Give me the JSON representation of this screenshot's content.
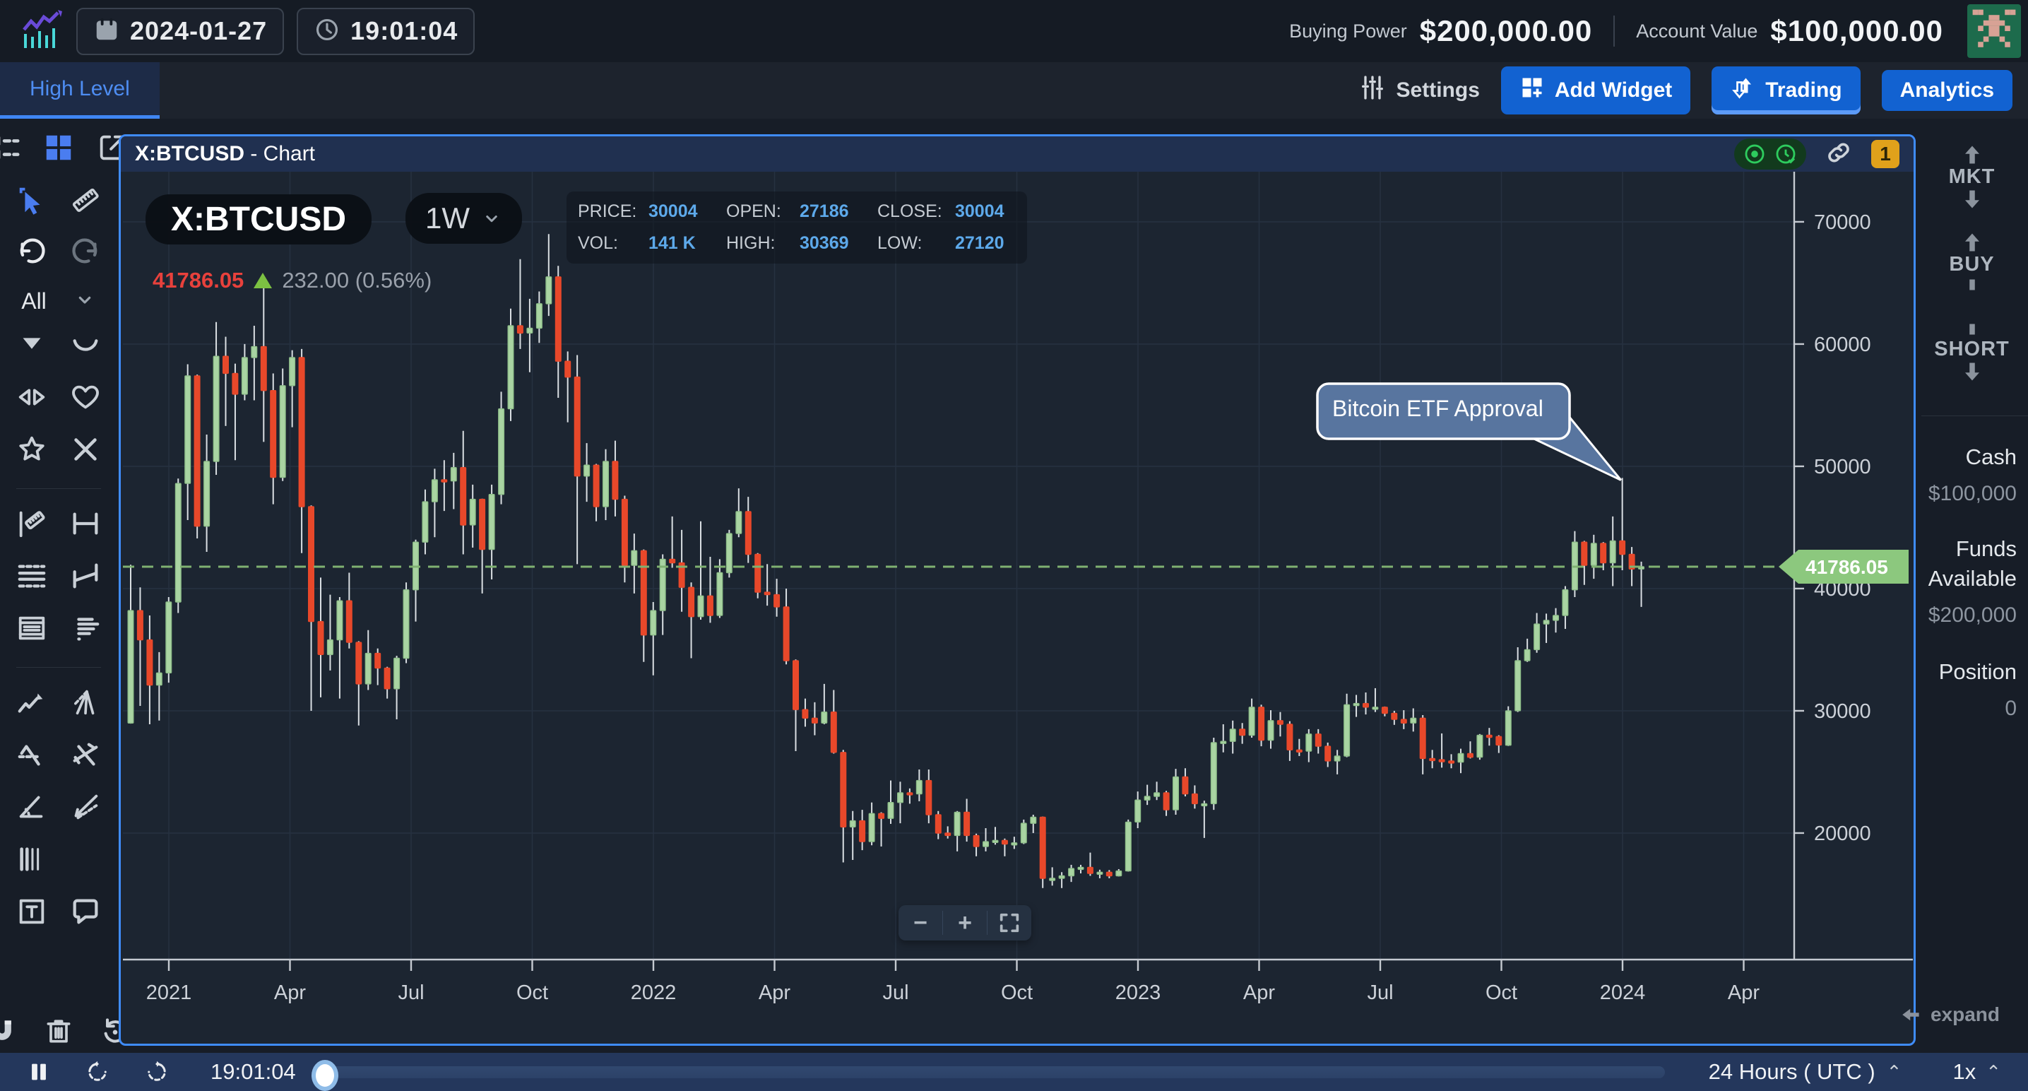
{
  "top_bar": {
    "date": "2024-01-27",
    "time": "19:01:04",
    "buying_power_label": "Buying Power",
    "buying_power_value": "$200,000.00",
    "account_value_label": "Account Value",
    "account_value_value": "$100,000.00"
  },
  "nav": {
    "tab": "High Level",
    "settings_label": "Settings",
    "add_widget_label": "Add Widget",
    "trading_label": "Trading",
    "analytics_label": "Analytics"
  },
  "chart_panel": {
    "title_symbol": "X:BTCUSD",
    "title_suffix": " - Chart",
    "badge_count": "1",
    "symbol_pill": "X:BTCUSD",
    "timeframe": "1W",
    "last_price": "41786.05",
    "change_text": "232.00 (0.56%)",
    "ohlc": {
      "price_label": "PRICE:",
      "price": "30004",
      "open_label": "OPEN:",
      "open": "27186",
      "close_label": "CLOSE:",
      "close": "30004",
      "vol_label": "VOL:",
      "vol": "141 K",
      "high_label": "HIGH:",
      "high": "30369",
      "low_label": "LOW:",
      "low": "27120"
    },
    "zoom_minus": "−",
    "zoom_plus": "+"
  },
  "drawing_toolbar": {
    "dropdown_label": "All"
  },
  "trade_sidebar": {
    "mkt": "MKT",
    "buy": "BUY",
    "short": "SHORT",
    "cash_label": "Cash",
    "cash_value": "$100,000",
    "funds_label_1": "Funds",
    "funds_label_2": "Available",
    "funds_value": "$200,000",
    "position_label": "Position",
    "position_value": "0",
    "expand_label": "expand"
  },
  "playbar": {
    "time": "19:01:04",
    "timezone": "24 Hours ( UTC )",
    "speed": "1x"
  },
  "chart_data": {
    "type": "candlestick",
    "symbol": "X:BTCUSD",
    "timeframe": "1W",
    "title": "X:BTCUSD - Chart",
    "y_ticks": [
      70000,
      60000,
      50000,
      40000,
      30000,
      20000
    ],
    "x_labels": [
      "2021",
      "Apr",
      "Jul",
      "Oct",
      "2022",
      "Apr",
      "Jul",
      "Oct",
      "2023",
      "Apr",
      "Jul",
      "Oct",
      "2024",
      "Apr"
    ],
    "y_axis_top_price": 74100,
    "y_axis_bottom_price": 9650,
    "current_price": 41786.05,
    "current_price_label": "41786.05",
    "annotation": {
      "text": "Bitcoin ETF Approval",
      "candle_index": 157,
      "anchor_price": 49050
    },
    "colors": {
      "up": "#a9d4a2",
      "up_stroke": "#8fbf8a",
      "down": "#e8482a",
      "wick": "#dadfe3",
      "current_line": "#7fb171",
      "tag_bg": "#8cc87e",
      "accent_blue": "#3f8cfa"
    },
    "candles": [
      [
        29000,
        41950,
        28950,
        38200
      ],
      [
        38200,
        40100,
        30400,
        35800
      ],
      [
        35800,
        37800,
        28900,
        32100
      ],
      [
        32100,
        34800,
        29200,
        33100
      ],
      [
        33100,
        39300,
        32300,
        38900
      ],
      [
        38900,
        49000,
        38000,
        48600
      ],
      [
        48600,
        58350,
        45600,
        57400
      ],
      [
        57400,
        57500,
        44100,
        45100
      ],
      [
        45100,
        52600,
        43000,
        50400
      ],
      [
        50400,
        61800,
        49300,
        59000
      ],
      [
        59000,
        60600,
        53300,
        57600
      ],
      [
        57600,
        58400,
        50500,
        55900
      ],
      [
        55900,
        60000,
        55400,
        58900
      ],
      [
        58900,
        61500,
        55400,
        59800
      ],
      [
        59800,
        64850,
        52000,
        56200
      ],
      [
        56200,
        57600,
        46900,
        49100
      ],
      [
        49100,
        58000,
        48800,
        56600
      ],
      [
        56600,
        59500,
        53200,
        58900
      ],
      [
        58900,
        59600,
        42900,
        46700
      ],
      [
        46700,
        46800,
        30000,
        37300
      ],
      [
        37300,
        40900,
        31100,
        34600
      ],
      [
        34600,
        39500,
        33300,
        35800
      ],
      [
        35800,
        39300,
        31000,
        39000
      ],
      [
        39000,
        41300,
        35100,
        35600
      ],
      [
        35600,
        35700,
        28800,
        32200
      ],
      [
        32200,
        36600,
        31700,
        34700
      ],
      [
        34700,
        35100,
        32100,
        33500
      ],
      [
        33500,
        33600,
        31000,
        31800
      ],
      [
        31800,
        34500,
        29300,
        34300
      ],
      [
        34300,
        40500,
        33900,
        39900
      ],
      [
        39900,
        44000,
        37300,
        43800
      ],
      [
        43800,
        48100,
        42800,
        47100
      ],
      [
        47100,
        49800,
        44200,
        48900
      ],
      [
        48900,
        50500,
        46350,
        48800
      ],
      [
        48800,
        51100,
        46500,
        49900
      ],
      [
        49900,
        52900,
        42800,
        45200
      ],
      [
        45200,
        48500,
        43350,
        47300
      ],
      [
        47300,
        47350,
        39600,
        43200
      ],
      [
        43200,
        48500,
        40750,
        47700
      ],
      [
        47700,
        56100,
        46900,
        54700
      ],
      [
        54700,
        62900,
        53700,
        61500
      ],
      [
        61500,
        66950,
        59600,
        60900
      ],
      [
        60900,
        63700,
        57700,
        61300
      ],
      [
        61300,
        64300,
        60100,
        63300
      ],
      [
        63300,
        69000,
        62300,
        65500
      ],
      [
        65500,
        66400,
        55600,
        58600
      ],
      [
        58600,
        59400,
        53600,
        57300
      ],
      [
        57300,
        59100,
        42000,
        49200
      ],
      [
        49200,
        51900,
        47100,
        50100
      ],
      [
        50100,
        50200,
        45500,
        46700
      ],
      [
        46700,
        51400,
        45600,
        50400
      ],
      [
        50400,
        52100,
        45900,
        47300
      ],
      [
        47300,
        47600,
        40500,
        41900
      ],
      [
        41900,
        44500,
        39600,
        43100
      ],
      [
        43100,
        43200,
        34000,
        36200
      ],
      [
        36200,
        38900,
        32900,
        38200
      ],
      [
        38200,
        42800,
        36200,
        42400
      ],
      [
        42400,
        45900,
        41700,
        42100
      ],
      [
        42100,
        44800,
        38100,
        40100
      ],
      [
        40100,
        40500,
        34300,
        37700
      ],
      [
        37700,
        45500,
        37450,
        39400
      ],
      [
        39400,
        42600,
        37200,
        37800
      ],
      [
        37800,
        42400,
        37600,
        41300
      ],
      [
        41300,
        44800,
        40900,
        44500
      ],
      [
        44500,
        48200,
        44200,
        46300
      ],
      [
        46300,
        47500,
        42100,
        42800
      ],
      [
        42800,
        42900,
        39200,
        39700
      ],
      [
        39700,
        42000,
        38600,
        39500
      ],
      [
        39500,
        40800,
        37700,
        38500
      ],
      [
        38500,
        40000,
        33800,
        34100
      ],
      [
        34100,
        34200,
        26700,
        30100
      ],
      [
        30100,
        31000,
        28700,
        29400
      ],
      [
        29400,
        30700,
        28000,
        29000
      ],
      [
        29000,
        32200,
        28900,
        29900
      ],
      [
        29900,
        31700,
        26500,
        26600
      ],
      [
        26600,
        26800,
        17600,
        20500
      ],
      [
        20500,
        21800,
        17800,
        21000
      ],
      [
        21000,
        21900,
        18600,
        19300
      ],
      [
        19300,
        22500,
        19000,
        21600
      ],
      [
        21600,
        21700,
        18900,
        21200
      ],
      [
        21200,
        24300,
        20750,
        22500
      ],
      [
        22500,
        24200,
        20800,
        23300
      ],
      [
        23300,
        23650,
        22400,
        23200
      ],
      [
        23200,
        25200,
        22600,
        24300
      ],
      [
        24300,
        25200,
        20800,
        21500
      ],
      [
        21500,
        21800,
        19500,
        20000
      ],
      [
        20000,
        20550,
        19550,
        19800
      ],
      [
        19800,
        21800,
        18500,
        21700
      ],
      [
        21700,
        22800,
        19300,
        19800
      ],
      [
        19800,
        19950,
        18100,
        18900
      ],
      [
        18900,
        20400,
        18500,
        19300
      ],
      [
        19300,
        20500,
        19050,
        19400
      ],
      [
        19400,
        19550,
        18100,
        19100
      ],
      [
        19100,
        19700,
        18700,
        19200
      ],
      [
        19200,
        21100,
        19100,
        20800
      ],
      [
        20800,
        21500,
        20000,
        21300
      ],
      [
        21300,
        21350,
        15500,
        16300
      ],
      [
        16300,
        17200,
        15700,
        16300
      ],
      [
        16300,
        16800,
        15500,
        16500
      ],
      [
        16500,
        17400,
        16000,
        17100
      ],
      [
        17100,
        17400,
        16700,
        17200
      ],
      [
        17200,
        18400,
        16500,
        16700
      ],
      [
        16700,
        17000,
        16300,
        16800
      ],
      [
        16800,
        16970,
        16300,
        16500
      ],
      [
        16500,
        17050,
        16450,
        16900
      ],
      [
        16900,
        21100,
        16850,
        20900
      ],
      [
        20900,
        23400,
        20400,
        22700
      ],
      [
        22700,
        23950,
        22300,
        23000
      ],
      [
        23000,
        24200,
        22700,
        23300
      ],
      [
        23300,
        23450,
        21400,
        21900
      ],
      [
        21900,
        25250,
        21500,
        24600
      ],
      [
        24600,
        25300,
        23000,
        23200
      ],
      [
        23200,
        23900,
        22000,
        22400
      ],
      [
        22400,
        22650,
        19600,
        22400
      ],
      [
        22400,
        27800,
        21900,
        27400
      ],
      [
        27400,
        28900,
        26600,
        27500
      ],
      [
        27500,
        29200,
        26500,
        28500
      ],
      [
        28500,
        29000,
        27300,
        28000
      ],
      [
        28000,
        31000,
        27800,
        30300
      ],
      [
        30300,
        30500,
        27100,
        27600
      ],
      [
        27600,
        30050,
        26900,
        29200
      ],
      [
        29200,
        29900,
        27900,
        28900
      ],
      [
        28900,
        29150,
        25900,
        26800
      ],
      [
        26800,
        27700,
        26300,
        26700
      ],
      [
        26700,
        28500,
        25800,
        28100
      ],
      [
        28100,
        28500,
        26500,
        27100
      ],
      [
        27100,
        27400,
        25400,
        25900
      ],
      [
        25900,
        26800,
        24800,
        26300
      ],
      [
        26300,
        31400,
        26200,
        30500
      ],
      [
        30500,
        31300,
        29500,
        30600
      ],
      [
        30600,
        31500,
        29700,
        30300
      ],
      [
        30300,
        31850,
        29900,
        30300
      ],
      [
        30300,
        30350,
        29550,
        29800
      ],
      [
        29800,
        30000,
        28850,
        29300
      ],
      [
        29300,
        30050,
        28500,
        29000
      ],
      [
        29000,
        30200,
        28300,
        29400
      ],
      [
        29400,
        29650,
        24800,
        26100
      ],
      [
        26100,
        26800,
        25300,
        26000
      ],
      [
        26000,
        28150,
        25350,
        25900
      ],
      [
        25900,
        26450,
        25300,
        25800
      ],
      [
        25800,
        26900,
        24900,
        26500
      ],
      [
        26500,
        27500,
        26100,
        26200
      ],
      [
        26200,
        28100,
        26000,
        28000
      ],
      [
        28000,
        28600,
        27150,
        27900
      ],
      [
        27900,
        28000,
        26550,
        27200
      ],
      [
        27186,
        30369,
        27120,
        30004
      ],
      [
        30004,
        35200,
        29900,
        34100
      ],
      [
        34100,
        35900,
        34000,
        35000
      ],
      [
        35000,
        38000,
        34750,
        37100
      ],
      [
        37100,
        37950,
        35550,
        37400
      ],
      [
        37400,
        38400,
        36400,
        37800
      ],
      [
        37800,
        40200,
        36700,
        39900
      ],
      [
        39900,
        44700,
        39300,
        43800
      ],
      [
        43800,
        43900,
        40300,
        41900
      ],
      [
        41900,
        44400,
        40800,
        43700
      ],
      [
        43700,
        43800,
        41500,
        42100
      ],
      [
        42100,
        45900,
        40200,
        43900
      ],
      [
        43900,
        49050,
        41500,
        42800
      ],
      [
        42800,
        43400,
        40200,
        41600
      ],
      [
        41600,
        42200,
        38500,
        41786
      ]
    ]
  }
}
